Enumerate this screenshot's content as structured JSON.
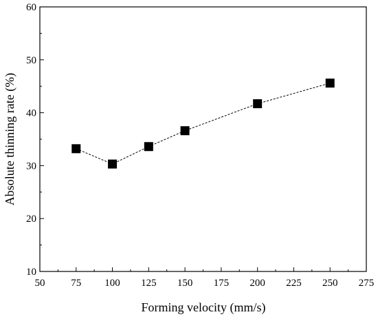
{
  "chart_data": {
    "type": "line",
    "xlabel": "Forming velocity (mm/s)",
    "ylabel": "Absolute thinning rate (%)",
    "xlim": [
      50,
      275
    ],
    "ylim": [
      10,
      60
    ],
    "xticks": [
      50,
      75,
      100,
      125,
      150,
      175,
      200,
      225,
      250,
      275
    ],
    "yticks": [
      10,
      20,
      30,
      40,
      50,
      60
    ],
    "grid": false,
    "series": [
      {
        "x": [
          75,
          100,
          125,
          150,
          200,
          250
        ],
        "y": [
          33.2,
          30.3,
          33.6,
          36.6,
          41.7,
          45.6
        ],
        "marker": "square",
        "line_style": "dashed",
        "color": "#000000"
      }
    ]
  }
}
